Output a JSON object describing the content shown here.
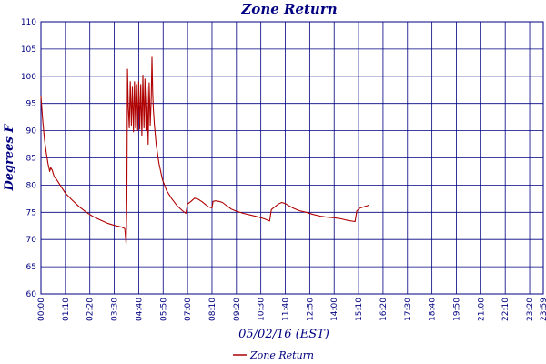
{
  "chart_data": {
    "type": "line",
    "title": "Zone Return",
    "xlabel": "05/02/16 (EST)",
    "ylabel": "Degrees F",
    "ylim": [
      60,
      110
    ],
    "y_ticks": [
      "60",
      "65",
      "70",
      "75",
      "80",
      "85",
      "90",
      "95",
      "100",
      "105",
      "110"
    ],
    "x_ticks": [
      "00:00",
      "01:10",
      "02:20",
      "03:30",
      "04:40",
      "05:50",
      "07:00",
      "08:10",
      "09:20",
      "10:30",
      "11:40",
      "12:50",
      "14:00",
      "15:10",
      "16:20",
      "17:30",
      "18:40",
      "19:50",
      "21:00",
      "22:10",
      "23:20",
      "23:59"
    ],
    "x_unit_minutes": [
      0,
      70,
      140,
      210,
      280,
      350,
      420,
      490,
      560,
      630,
      700,
      770,
      840,
      910,
      980,
      1050,
      1120,
      1190,
      1260,
      1330,
      1400,
      1439
    ],
    "grid": true,
    "legend_position": "bottom-center",
    "series": [
      {
        "name": "Zone Return",
        "color": "#b00000",
        "points": [
          [
            0,
            96.3
          ],
          [
            5,
            92
          ],
          [
            10,
            88.5
          ],
          [
            15,
            86
          ],
          [
            20,
            84
          ],
          [
            25,
            82.5
          ],
          [
            28,
            83.2
          ],
          [
            32,
            82.8
          ],
          [
            38,
            81.5
          ],
          [
            45,
            81
          ],
          [
            55,
            80
          ],
          [
            70,
            78.5
          ],
          [
            90,
            77.2
          ],
          [
            110,
            76
          ],
          [
            130,
            75
          ],
          [
            150,
            74.2
          ],
          [
            170,
            73.6
          ],
          [
            190,
            73
          ],
          [
            210,
            72.6
          ],
          [
            230,
            72.3
          ],
          [
            240,
            72
          ],
          [
            244,
            69.2
          ],
          [
            246,
            77
          ],
          [
            248,
            101.3
          ],
          [
            250,
            95
          ],
          [
            253,
            90.5
          ],
          [
            256,
            99
          ],
          [
            259,
            91
          ],
          [
            262,
            98
          ],
          [
            265,
            89.8
          ],
          [
            268,
            99
          ],
          [
            271,
            90.5
          ],
          [
            274,
            98.5
          ],
          [
            277,
            90
          ],
          [
            280,
            99
          ],
          [
            283,
            90.3
          ],
          [
            286,
            98.5
          ],
          [
            289,
            89
          ],
          [
            292,
            100.2
          ],
          [
            295,
            90.5
          ],
          [
            298,
            99.5
          ],
          [
            301,
            90
          ],
          [
            304,
            98
          ],
          [
            307,
            87.5
          ],
          [
            310,
            98.8
          ],
          [
            313,
            91
          ],
          [
            316,
            96
          ],
          [
            318,
            103.5
          ],
          [
            320,
            97
          ],
          [
            322,
            94
          ],
          [
            325,
            91
          ],
          [
            330,
            87.5
          ],
          [
            338,
            84
          ],
          [
            348,
            81
          ],
          [
            360,
            79
          ],
          [
            375,
            77.5
          ],
          [
            390,
            76.2
          ],
          [
            405,
            75.3
          ],
          [
            415,
            74.8
          ],
          [
            420,
            76.5
          ],
          [
            430,
            77
          ],
          [
            440,
            77.6
          ],
          [
            450,
            77.4
          ],
          [
            460,
            77
          ],
          [
            470,
            76.5
          ],
          [
            480,
            76
          ],
          [
            490,
            75.8
          ],
          [
            493,
            77
          ],
          [
            500,
            77.1
          ],
          [
            510,
            77
          ],
          [
            520,
            76.8
          ],
          [
            530,
            76.3
          ],
          [
            545,
            75.6
          ],
          [
            560,
            75.2
          ],
          [
            580,
            74.8
          ],
          [
            600,
            74.5
          ],
          [
            620,
            74.2
          ],
          [
            640,
            73.8
          ],
          [
            655,
            73.4
          ],
          [
            660,
            75.5
          ],
          [
            670,
            76
          ],
          [
            680,
            76.5
          ],
          [
            690,
            76.8
          ],
          [
            700,
            76.6
          ],
          [
            710,
            76.2
          ],
          [
            725,
            75.7
          ],
          [
            740,
            75.3
          ],
          [
            760,
            75
          ],
          [
            780,
            74.6
          ],
          [
            800,
            74.3
          ],
          [
            820,
            74.1
          ],
          [
            840,
            74
          ],
          [
            860,
            73.8
          ],
          [
            880,
            73.5
          ],
          [
            900,
            73.3
          ],
          [
            905,
            75.3
          ],
          [
            915,
            75.8
          ],
          [
            925,
            76
          ],
          [
            935,
            76.2
          ],
          [
            939,
            76.3
          ]
        ]
      }
    ]
  }
}
